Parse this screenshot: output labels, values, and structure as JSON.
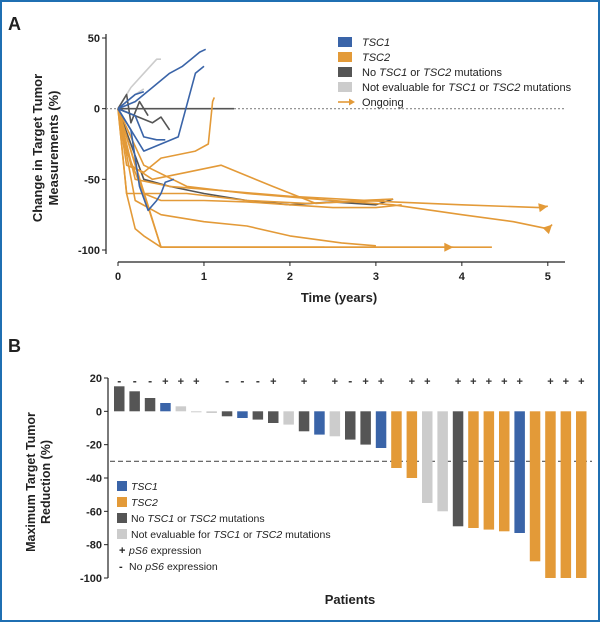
{
  "chart_data": [
    {
      "panel": "A",
      "type": "line",
      "xlabel": "Time (years)",
      "ylabel_lines": [
        "Change in Target Tumor",
        "Measurements (%)"
      ],
      "xlim": [
        0,
        5.2
      ],
      "ylim": [
        -100,
        50
      ],
      "xticks": [
        0,
        1,
        2,
        3,
        4,
        5
      ],
      "yticks": [
        -100,
        -50,
        0,
        50
      ],
      "reference_line": 0,
      "legend": [
        {
          "key": "tsc1",
          "label": "TSC1",
          "italic": true,
          "kind": "swatch"
        },
        {
          "key": "tsc2",
          "label": "TSC2",
          "italic": true,
          "kind": "swatch"
        },
        {
          "key": "none",
          "label": "No TSC1 or TSC2 mutations",
          "kind": "swatch"
        },
        {
          "key": "ne",
          "label": "Not evaluable for TSC1 or TSC2 mutations",
          "kind": "swatch"
        },
        {
          "key": "ongoing",
          "label": "Ongoing",
          "kind": "arrow"
        }
      ],
      "series": [
        {
          "group": "tsc1",
          "points": [
            [
              0,
              0
            ],
            [
              0.3,
              -30
            ],
            [
              0.7,
              -20
            ],
            [
              0.9,
              25
            ],
            [
              1.0,
              30
            ]
          ]
        },
        {
          "group": "tsc1",
          "points": [
            [
              0,
              0
            ],
            [
              0.2,
              5
            ],
            [
              0.4,
              15
            ],
            [
              0.6,
              25
            ],
            [
              0.75,
              30
            ],
            [
              0.85,
              35
            ],
            [
              0.95,
              40
            ],
            [
              1.02,
              42
            ]
          ]
        },
        {
          "group": "tsc1",
          "points": [
            [
              0,
              0
            ],
            [
              0.15,
              -15
            ],
            [
              0.25,
              -55
            ],
            [
              0.35,
              -72
            ],
            [
              0.45,
              -65
            ],
            [
              0.5,
              -60
            ],
            [
              0.55,
              -52
            ],
            [
              0.65,
              -50
            ]
          ]
        },
        {
          "group": "tsc1",
          "points": [
            [
              0,
              0
            ],
            [
              0.2,
              -5
            ],
            [
              0.3,
              -20
            ],
            [
              0.45,
              -22
            ],
            [
              0.55,
              -22
            ]
          ]
        },
        {
          "group": "tsc1",
          "points": [
            [
              0,
              0
            ],
            [
              0.1,
              5
            ],
            [
              0.2,
              10
            ],
            [
              0.3,
              12
            ]
          ]
        },
        {
          "group": "tsc2",
          "points": [
            [
              0,
              0
            ],
            [
              0.1,
              -40
            ],
            [
              0.3,
              -45
            ],
            [
              0.5,
              -35
            ],
            [
              0.9,
              -30
            ],
            [
              1.05,
              -25
            ],
            [
              1.1,
              5
            ],
            [
              1.12,
              8
            ]
          ]
        },
        {
          "group": "tsc2",
          "points": [
            [
              0,
              0
            ],
            [
              0.1,
              -60
            ],
            [
              0.3,
              -60
            ],
            [
              0.8,
              -60
            ],
            [
              1.5,
              -65
            ],
            [
              2.2,
              -67
            ],
            [
              3.1,
              -65
            ]
          ]
        },
        {
          "group": "tsc2",
          "points": [
            [
              0,
              0
            ],
            [
              0.2,
              -50
            ],
            [
              0.6,
              -55
            ],
            [
              1.2,
              -58
            ],
            [
              2.0,
              -62
            ],
            [
              3.2,
              -66
            ],
            [
              4.0,
              -68
            ],
            [
              4.9,
              -70
            ],
            [
              5.0,
              -69
            ]
          ],
          "ongoing": true
        },
        {
          "group": "tsc2",
          "points": [
            [
              0,
              0
            ],
            [
              0.3,
              -40
            ],
            [
              0.8,
              -55
            ],
            [
              1.5,
              -60
            ],
            [
              2.5,
              -65
            ],
            [
              3.2,
              -68
            ],
            [
              4.0,
              -75
            ],
            [
              4.6,
              -80
            ],
            [
              5.0,
              -85
            ],
            [
              5.05,
              -82
            ]
          ],
          "ongoing": true
        },
        {
          "group": "tsc2",
          "points": [
            [
              0,
              0
            ],
            [
              0.2,
              -65
            ],
            [
              0.5,
              -75
            ],
            [
              1.0,
              -80
            ],
            [
              1.5,
              -83
            ],
            [
              2.0,
              -90
            ],
            [
              2.6,
              -95
            ],
            [
              3.0,
              -97
            ]
          ]
        },
        {
          "group": "tsc2",
          "points": [
            [
              0,
              0
            ],
            [
              0.1,
              -60
            ],
            [
              0.2,
              -85
            ],
            [
              0.3,
              -90
            ],
            [
              0.5,
              -98
            ],
            [
              1.0,
              -98
            ],
            [
              2.0,
              -98
            ],
            [
              2.4,
              -98
            ]
          ]
        },
        {
          "group": "tsc2",
          "points": [
            [
              0,
              0
            ],
            [
              0.1,
              -30
            ],
            [
              0.3,
              -60
            ],
            [
              0.5,
              -65
            ],
            [
              1.0,
              -65
            ],
            [
              1.5,
              -66
            ],
            [
              2.0,
              -68
            ],
            [
              2.5,
              -70
            ],
            [
              3.0,
              -70
            ],
            [
              3.3,
              -68
            ]
          ]
        },
        {
          "group": "tsc2",
          "points": [
            [
              0,
              0
            ],
            [
              0.15,
              -40
            ],
            [
              0.4,
              -50
            ],
            [
              0.8,
              -45
            ],
            [
              1.2,
              -40
            ],
            [
              1.8,
              -55
            ],
            [
              2.3,
              -67
            ],
            [
              2.8,
              -65
            ],
            [
              3.2,
              -64
            ]
          ]
        },
        {
          "group": "tsc2",
          "points": [
            [
              0,
              0
            ],
            [
              0.3,
              -60
            ],
            [
              0.5,
              -98
            ],
            [
              1.0,
              -98
            ],
            [
              2.0,
              -98
            ],
            [
              3.0,
              -98
            ],
            [
              3.9,
              -98
            ]
          ],
          "ongoing": true
        },
        {
          "group": "tsc2",
          "points": [
            [
              0,
              0
            ],
            [
              0.5,
              -98
            ],
            [
              2.0,
              -98
            ],
            [
              3.0,
              -98
            ],
            [
              4.35,
              -98
            ]
          ]
        },
        {
          "group": "none",
          "points": [
            [
              0,
              0
            ],
            [
              0.2,
              -5
            ],
            [
              0.4,
              -10
            ],
            [
              0.5,
              -6
            ],
            [
              0.6,
              -15
            ]
          ]
        },
        {
          "group": "none",
          "points": [
            [
              0,
              0
            ],
            [
              0.2,
              0
            ],
            [
              0.5,
              0
            ],
            [
              1.0,
              0
            ],
            [
              1.35,
              0
            ]
          ]
        },
        {
          "group": "none",
          "points": [
            [
              0,
              0
            ],
            [
              0.3,
              -50
            ],
            [
              0.6,
              -55
            ],
            [
              1.0,
              -60
            ],
            [
              1.5,
              -65
            ],
            [
              2.0,
              -68
            ],
            [
              2.5,
              -66
            ],
            [
              3.0,
              -68
            ],
            [
              3.2,
              -64
            ]
          ]
        },
        {
          "group": "none",
          "points": [
            [
              0,
              0
            ],
            [
              0.1,
              10
            ],
            [
              0.15,
              -10
            ],
            [
              0.25,
              5
            ],
            [
              0.35,
              -5
            ]
          ]
        },
        {
          "group": "ne",
          "points": [
            [
              0,
              0
            ],
            [
              0.15,
              15
            ],
            [
              0.3,
              25
            ],
            [
              0.45,
              35
            ],
            [
              0.5,
              35
            ]
          ]
        },
        {
          "group": "ne",
          "points": [
            [
              0,
              0
            ],
            [
              0.2,
              10
            ],
            [
              0.3,
              14
            ]
          ]
        }
      ]
    },
    {
      "panel": "B",
      "type": "bar",
      "xlabel": "Patients",
      "ylabel_lines": [
        "Maximum Target Tumor",
        "Reduction (%)"
      ],
      "ylim": [
        -100,
        20
      ],
      "yticks": [
        -100,
        -80,
        -60,
        -40,
        -20,
        0,
        20
      ],
      "threshold": -30,
      "legend": [
        {
          "key": "tsc1",
          "label": "TSC1",
          "italic": true,
          "kind": "swatch"
        },
        {
          "key": "tsc2",
          "label": "TSC2",
          "italic": true,
          "kind": "swatch"
        },
        {
          "key": "none",
          "label": "No TSC1 or TSC2 mutations",
          "kind": "swatch"
        },
        {
          "key": "ne",
          "label": "Not evaluable for TSC1 or TSC2 mutations",
          "kind": "swatch"
        },
        {
          "key": "pos",
          "label": "pS6 expression",
          "symbol": "+",
          "kind": "symbol"
        },
        {
          "key": "neg",
          "label": "No pS6 expression",
          "symbol": "-",
          "kind": "symbol"
        }
      ],
      "bars": [
        {
          "value": 15,
          "group": "none",
          "marker": "-"
        },
        {
          "value": 12,
          "group": "none",
          "marker": "-"
        },
        {
          "value": 8,
          "group": "none",
          "marker": "-"
        },
        {
          "value": 5,
          "group": "tsc1",
          "marker": "+"
        },
        {
          "value": 3,
          "group": "ne",
          "marker": "+"
        },
        {
          "value": 0,
          "group": "ne",
          "marker": "+"
        },
        {
          "value": -1,
          "group": "ne",
          "marker": ""
        },
        {
          "value": -3,
          "group": "none",
          "marker": "-"
        },
        {
          "value": -4,
          "group": "tsc1",
          "marker": "-"
        },
        {
          "value": -5,
          "group": "none",
          "marker": "-"
        },
        {
          "value": -7,
          "group": "none",
          "marker": "+"
        },
        {
          "value": -8,
          "group": "ne",
          "marker": ""
        },
        {
          "value": -12,
          "group": "none",
          "marker": "+"
        },
        {
          "value": -14,
          "group": "tsc1",
          "marker": ""
        },
        {
          "value": -15,
          "group": "ne",
          "marker": "+"
        },
        {
          "value": -17,
          "group": "none",
          "marker": "-"
        },
        {
          "value": -20,
          "group": "none",
          "marker": "+"
        },
        {
          "value": -22,
          "group": "tsc1",
          "marker": "+"
        },
        {
          "value": -34,
          "group": "tsc2",
          "marker": ""
        },
        {
          "value": -40,
          "group": "tsc2",
          "marker": "+"
        },
        {
          "value": -55,
          "group": "ne",
          "marker": "+"
        },
        {
          "value": -60,
          "group": "ne",
          "marker": ""
        },
        {
          "value": -69,
          "group": "none",
          "marker": "+"
        },
        {
          "value": -70,
          "group": "tsc2",
          "marker": "+"
        },
        {
          "value": -71,
          "group": "tsc2",
          "marker": "+"
        },
        {
          "value": -72,
          "group": "tsc2",
          "marker": "+"
        },
        {
          "value": -73,
          "group": "tsc1",
          "marker": "+"
        },
        {
          "value": -90,
          "group": "tsc2",
          "marker": ""
        },
        {
          "value": -100,
          "group": "tsc2",
          "marker": "+"
        },
        {
          "value": -100,
          "group": "tsc2",
          "marker": "+"
        },
        {
          "value": -100,
          "group": "tsc2",
          "marker": "+"
        }
      ]
    }
  ],
  "colors": {
    "tsc1": "#3a64a8",
    "tsc2": "#e39a38",
    "none": "#555555",
    "ne": "#cccccc",
    "frame": "#1f6fb2"
  },
  "panel_labels": {
    "a": "A",
    "b": "B"
  }
}
